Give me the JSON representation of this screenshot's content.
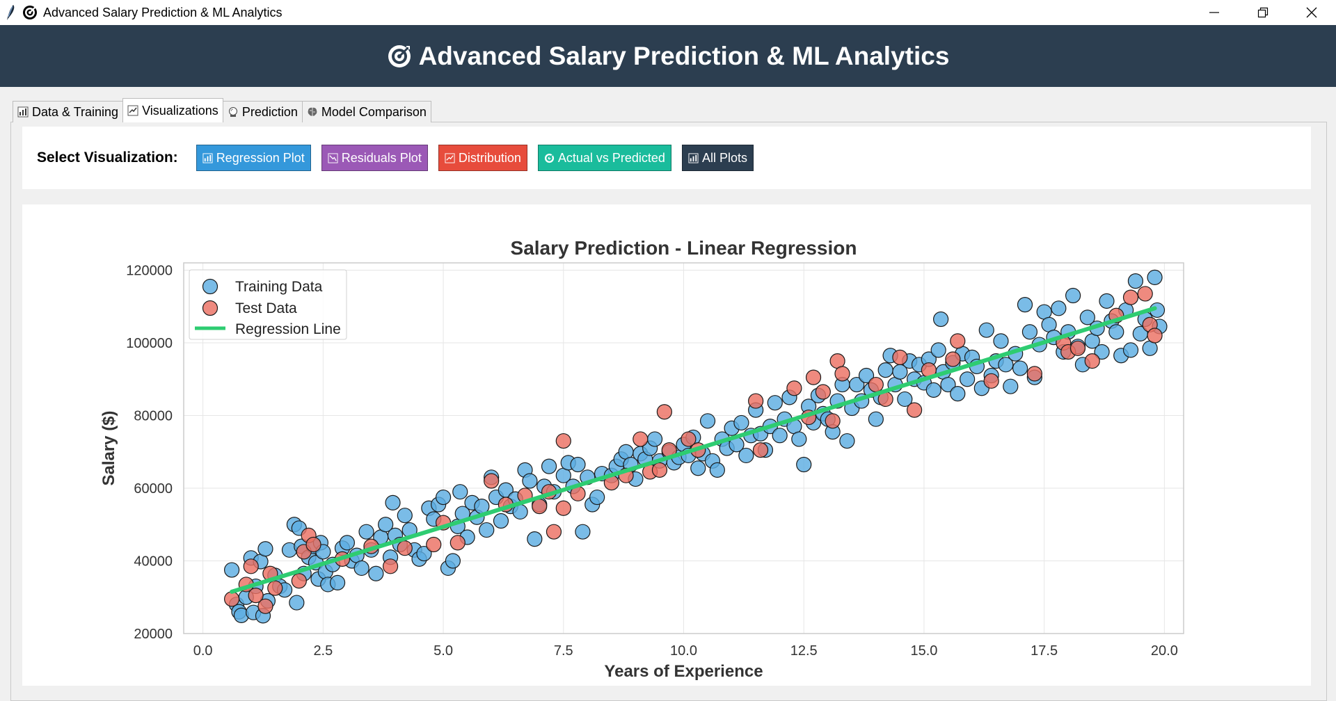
{
  "window": {
    "title": "Advanced Salary Prediction & ML Analytics",
    "controls": [
      "minimize-icon",
      "restore-icon",
      "close-icon"
    ]
  },
  "header": {
    "title": "Advanced Salary Prediction & ML Analytics",
    "icon": "target-icon",
    "background": "#2c3e50"
  },
  "tabs": [
    {
      "label": "Data & Training",
      "icon": "bar-chart-icon",
      "active": false
    },
    {
      "label": "Visualizations",
      "icon": "chart-check-icon",
      "active": true
    },
    {
      "label": "Prediction",
      "icon": "crystal-ball-icon",
      "active": false
    },
    {
      "label": "Model Comparison",
      "icon": "brain-icon",
      "active": false
    }
  ],
  "controls": {
    "label": "Select Visualization:",
    "buttons": [
      {
        "label": "Regression Plot",
        "icon": "bar-chart-icon",
        "color": "#3498db"
      },
      {
        "label": "Residuals Plot",
        "icon": "trend-icon",
        "color": "#9b59b6"
      },
      {
        "label": "Distribution",
        "icon": "chart-up-icon",
        "color": "#e74c3c"
      },
      {
        "label": "Actual vs Predicted",
        "icon": "target-icon",
        "color": "#1abc9c"
      },
      {
        "label": "All Plots",
        "icon": "bar-chart-icon",
        "color": "#2c3e50"
      }
    ]
  },
  "chart_data": {
    "type": "scatter",
    "title": "Salary Prediction - Linear Regression",
    "xlabel": "Years of Experience",
    "ylabel": "Salary ($)",
    "xlim": [
      -0.4,
      20.4
    ],
    "ylim": [
      20000,
      122000
    ],
    "xticks": [
      0.0,
      2.5,
      5.0,
      7.5,
      10.0,
      12.5,
      15.0,
      17.5,
      20.0
    ],
    "yticks": [
      20000,
      40000,
      60000,
      80000,
      100000,
      120000
    ],
    "grid": true,
    "legend_position": "top-left",
    "series": [
      {
        "name": "Training Data",
        "color": "#5dade2",
        "points": [
          [
            0.6,
            37500
          ],
          [
            0.7,
            28000
          ],
          [
            0.75,
            26000
          ],
          [
            0.8,
            25000
          ],
          [
            0.9,
            30000
          ],
          [
            1.0,
            40800
          ],
          [
            1.05,
            25800
          ],
          [
            1.1,
            33000
          ],
          [
            1.2,
            39800
          ],
          [
            1.25,
            24900
          ],
          [
            1.3,
            43300
          ],
          [
            1.35,
            29000
          ],
          [
            1.5,
            36000
          ],
          [
            1.6,
            33000
          ],
          [
            1.7,
            32000
          ],
          [
            1.8,
            43000
          ],
          [
            1.9,
            50000
          ],
          [
            1.95,
            28500
          ],
          [
            2.0,
            49000
          ],
          [
            2.05,
            44000
          ],
          [
            2.1,
            36500
          ],
          [
            2.2,
            41000
          ],
          [
            2.3,
            44000
          ],
          [
            2.35,
            39500
          ],
          [
            2.4,
            35000
          ],
          [
            2.45,
            45000
          ],
          [
            2.5,
            42500
          ],
          [
            2.55,
            37000
          ],
          [
            2.6,
            33500
          ],
          [
            2.7,
            39000
          ],
          [
            2.8,
            34000
          ],
          [
            2.9,
            43500
          ],
          [
            3.0,
            45000
          ],
          [
            3.1,
            40000
          ],
          [
            3.2,
            41500
          ],
          [
            3.3,
            38000
          ],
          [
            3.4,
            48000
          ],
          [
            3.5,
            43000
          ],
          [
            3.6,
            36500
          ],
          [
            3.7,
            46500
          ],
          [
            3.8,
            50000
          ],
          [
            3.9,
            41000
          ],
          [
            3.95,
            56000
          ],
          [
            4.0,
            47000
          ],
          [
            4.1,
            44500
          ],
          [
            4.2,
            52500
          ],
          [
            4.3,
            48500
          ],
          [
            4.4,
            43000
          ],
          [
            4.5,
            40500
          ],
          [
            4.6,
            42000
          ],
          [
            4.7,
            54500
          ],
          [
            4.8,
            51500
          ],
          [
            4.9,
            55500
          ],
          [
            5.0,
            57500
          ],
          [
            5.1,
            38000
          ],
          [
            5.2,
            40000
          ],
          [
            5.3,
            49500
          ],
          [
            5.35,
            59000
          ],
          [
            5.4,
            53000
          ],
          [
            5.5,
            46500
          ],
          [
            5.6,
            56000
          ],
          [
            5.7,
            52000
          ],
          [
            5.8,
            55000
          ],
          [
            5.9,
            48500
          ],
          [
            6.0,
            63000
          ],
          [
            6.1,
            57500
          ],
          [
            6.2,
            51000
          ],
          [
            6.3,
            59500
          ],
          [
            6.4,
            55000
          ],
          [
            6.5,
            57000
          ],
          [
            6.6,
            53500
          ],
          [
            6.7,
            65000
          ],
          [
            6.8,
            62000
          ],
          [
            6.9,
            46000
          ],
          [
            7.0,
            55500
          ],
          [
            7.1,
            60500
          ],
          [
            7.2,
            66000
          ],
          [
            7.3,
            59000
          ],
          [
            7.5,
            63500
          ],
          [
            7.6,
            67000
          ],
          [
            7.7,
            60500
          ],
          [
            7.8,
            66500
          ],
          [
            7.9,
            48000
          ],
          [
            8.0,
            63000
          ],
          [
            8.1,
            55500
          ],
          [
            8.2,
            57500
          ],
          [
            8.3,
            64000
          ],
          [
            8.5,
            63500
          ],
          [
            8.6,
            66000
          ],
          [
            8.7,
            68000
          ],
          [
            8.8,
            70000
          ],
          [
            8.9,
            66500
          ],
          [
            9.0,
            62500
          ],
          [
            9.1,
            69500
          ],
          [
            9.2,
            68000
          ],
          [
            9.3,
            71000
          ],
          [
            9.4,
            73500
          ],
          [
            9.5,
            67500
          ],
          [
            9.7,
            70000
          ],
          [
            9.8,
            67000
          ],
          [
            9.9,
            68500
          ],
          [
            10.0,
            72000
          ],
          [
            10.1,
            69000
          ],
          [
            10.2,
            74000
          ],
          [
            10.3,
            65500
          ],
          [
            10.4,
            69500
          ],
          [
            10.5,
            78500
          ],
          [
            10.6,
            67500
          ],
          [
            10.7,
            65000
          ],
          [
            10.8,
            73500
          ],
          [
            10.9,
            71000
          ],
          [
            11.0,
            76500
          ],
          [
            11.1,
            72000
          ],
          [
            11.2,
            78000
          ],
          [
            11.3,
            69000
          ],
          [
            11.4,
            74500
          ],
          [
            11.5,
            81500
          ],
          [
            11.6,
            75000
          ],
          [
            11.7,
            70500
          ],
          [
            11.8,
            77000
          ],
          [
            11.9,
            83500
          ],
          [
            12.0,
            74500
          ],
          [
            12.1,
            79000
          ],
          [
            12.2,
            85000
          ],
          [
            12.3,
            77000
          ],
          [
            12.4,
            73500
          ],
          [
            12.5,
            66500
          ],
          [
            12.6,
            82500
          ],
          [
            12.7,
            78000
          ],
          [
            12.8,
            85500
          ],
          [
            12.9,
            80500
          ],
          [
            13.0,
            79000
          ],
          [
            13.1,
            75500
          ],
          [
            13.2,
            84000
          ],
          [
            13.3,
            88500
          ],
          [
            13.4,
            73000
          ],
          [
            13.5,
            82000
          ],
          [
            13.6,
            88500
          ],
          [
            13.7,
            84000
          ],
          [
            13.8,
            91000
          ],
          [
            13.9,
            87000
          ],
          [
            14.0,
            79000
          ],
          [
            14.1,
            85000
          ],
          [
            14.2,
            92500
          ],
          [
            14.3,
            96500
          ],
          [
            14.4,
            88500
          ],
          [
            14.5,
            92000
          ],
          [
            14.6,
            84500
          ],
          [
            14.7,
            95000
          ],
          [
            14.8,
            90000
          ],
          [
            14.9,
            94000
          ],
          [
            15.0,
            89000
          ],
          [
            15.1,
            95500
          ],
          [
            15.2,
            87000
          ],
          [
            15.3,
            98000
          ],
          [
            15.35,
            106500
          ],
          [
            15.4,
            92000
          ],
          [
            15.5,
            88500
          ],
          [
            15.6,
            94500
          ],
          [
            15.7,
            86000
          ],
          [
            15.8,
            97000
          ],
          [
            15.9,
            90000
          ],
          [
            16.0,
            96000
          ],
          [
            16.1,
            93500
          ],
          [
            16.2,
            87500
          ],
          [
            16.3,
            103500
          ],
          [
            16.4,
            91000
          ],
          [
            16.5,
            95000
          ],
          [
            16.6,
            100500
          ],
          [
            16.7,
            94000
          ],
          [
            16.8,
            88000
          ],
          [
            16.9,
            97000
          ],
          [
            17.0,
            93000
          ],
          [
            17.1,
            110500
          ],
          [
            17.2,
            103000
          ],
          [
            17.3,
            90500
          ],
          [
            17.4,
            99500
          ],
          [
            17.5,
            108500
          ],
          [
            17.6,
            105000
          ],
          [
            17.7,
            101500
          ],
          [
            17.8,
            109500
          ],
          [
            17.9,
            97500
          ],
          [
            18.0,
            103000
          ],
          [
            18.1,
            113000
          ],
          [
            18.2,
            99000
          ],
          [
            18.3,
            94000
          ],
          [
            18.4,
            107000
          ],
          [
            18.5,
            100500
          ],
          [
            18.6,
            104000
          ],
          [
            18.7,
            97500
          ],
          [
            18.8,
            111500
          ],
          [
            18.9,
            106000
          ],
          [
            19.0,
            103000
          ],
          [
            19.1,
            96500
          ],
          [
            19.2,
            109000
          ],
          [
            19.3,
            98000
          ],
          [
            19.4,
            117000
          ],
          [
            19.5,
            102500
          ],
          [
            19.6,
            106500
          ],
          [
            19.7,
            98500
          ],
          [
            19.8,
            118000
          ],
          [
            19.85,
            109000
          ],
          [
            19.9,
            104500
          ]
        ]
      },
      {
        "name": "Test Data",
        "color": "#ec7063",
        "points": [
          [
            0.6,
            29500
          ],
          [
            0.9,
            33500
          ],
          [
            1.0,
            38500
          ],
          [
            1.1,
            30500
          ],
          [
            1.3,
            27500
          ],
          [
            1.4,
            36500
          ],
          [
            1.5,
            32500
          ],
          [
            2.0,
            34500
          ],
          [
            2.1,
            42500
          ],
          [
            2.2,
            47000
          ],
          [
            2.3,
            44500
          ],
          [
            2.9,
            40500
          ],
          [
            3.5,
            44000
          ],
          [
            3.9,
            38500
          ],
          [
            4.2,
            43500
          ],
          [
            4.8,
            44500
          ],
          [
            5.0,
            50500
          ],
          [
            5.3,
            45000
          ],
          [
            6.0,
            62000
          ],
          [
            6.3,
            55500
          ],
          [
            6.7,
            58000
          ],
          [
            7.0,
            55000
          ],
          [
            7.2,
            59000
          ],
          [
            7.3,
            48000
          ],
          [
            7.5,
            54500
          ],
          [
            7.5,
            73000
          ],
          [
            7.8,
            58500
          ],
          [
            8.5,
            61500
          ],
          [
            8.8,
            63500
          ],
          [
            9.1,
            73500
          ],
          [
            9.3,
            64500
          ],
          [
            9.5,
            65000
          ],
          [
            9.6,
            81000
          ],
          [
            9.7,
            70500
          ],
          [
            10.1,
            73500
          ],
          [
            10.3,
            70500
          ],
          [
            11.5,
            84000
          ],
          [
            11.6,
            70500
          ],
          [
            12.3,
            87500
          ],
          [
            12.6,
            79500
          ],
          [
            12.7,
            90500
          ],
          [
            12.9,
            86500
          ],
          [
            13.1,
            78500
          ],
          [
            13.2,
            95000
          ],
          [
            13.3,
            91500
          ],
          [
            14.0,
            88500
          ],
          [
            14.2,
            84500
          ],
          [
            14.5,
            96000
          ],
          [
            14.8,
            81500
          ],
          [
            15.1,
            92500
          ],
          [
            15.6,
            95500
          ],
          [
            15.7,
            100500
          ],
          [
            16.4,
            89500
          ],
          [
            17.3,
            91500
          ],
          [
            17.9,
            100000
          ],
          [
            18.0,
            97500
          ],
          [
            18.2,
            98500
          ],
          [
            18.5,
            95000
          ],
          [
            19.0,
            107500
          ],
          [
            19.3,
            112500
          ],
          [
            19.6,
            113500
          ],
          [
            19.7,
            105000
          ],
          [
            19.8,
            102000
          ]
        ]
      },
      {
        "name": "Regression Line",
        "color": "#2ecc71",
        "points": [
          [
            0.6,
            31500
          ],
          [
            19.8,
            109500
          ]
        ]
      }
    ]
  }
}
